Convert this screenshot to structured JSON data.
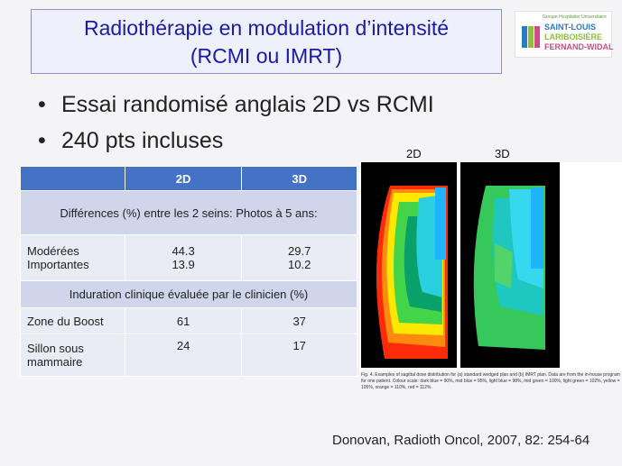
{
  "title": {
    "line1": "Radiothérapie en modulation d’intensité",
    "line2": "(RCMI ou IMRT)"
  },
  "logo": {
    "sub": "Groupe Hospitalier Universitaire",
    "line1": "SAINT-LOUIS",
    "line2": "LARIBOISIÈRE",
    "line3": "FERNAND-WIDAL"
  },
  "bullets": [
    "Essai randomisé anglais 2D vs RCMI",
    "240 pts incluses"
  ],
  "table": {
    "header": [
      "",
      "2D",
      "3D"
    ],
    "section1": "Différences (%) entre les 2 seins: Photos à 5 ans:",
    "row1": {
      "label_a": "Modérées",
      "label_b": "Importantes",
      "d2_a": "44.3",
      "d2_b": "13.9",
      "d3_a": "29.7",
      "d3_b": "10.2"
    },
    "section2": "Induration clinique évaluée par le clinicien (%)",
    "row2": {
      "label": "Zone du Boost",
      "d2": "61",
      "d3": "37"
    },
    "row3": {
      "label_a": "Sillon sous",
      "label_b": "mammaire",
      "d2": "24",
      "d3": "17"
    }
  },
  "figure": {
    "label_left": "2D",
    "label_right": "3D",
    "caption": "Fig. 4. Examples of sagittal dose distribution for (a) standard wedged plan and (b) IMRT plan. Data are from the in-house program for one patient. Colour scale: dark blue = 90%, mid blue = 95%, light blue = 98%, mid green = 100%, light green = 102%, yellow = 105%, orange = 110%, red = 112%."
  },
  "citation": "Donovan, Radioth Oncol, 2007, 82: 254-64",
  "colors": {
    "title_text": "#1a1aa6",
    "table_header": "#4472c4",
    "table_band": "#cfd5ea",
    "table_row": "#e9ebf5"
  }
}
